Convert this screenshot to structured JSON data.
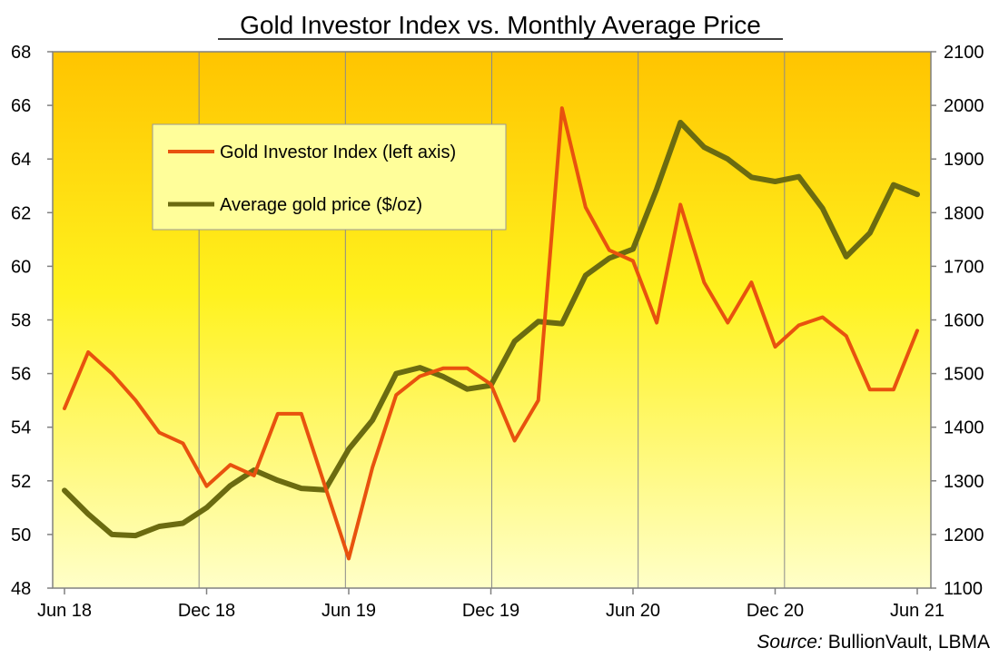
{
  "chart_data": {
    "type": "line",
    "title": "Gold Investor Index vs. Monthly  Average Price",
    "x_tick_labels": [
      "Jun 18",
      "Dec 18",
      "Jun 19",
      "Dec 19",
      "Jun 20",
      "Dec 20",
      "Jun 21"
    ],
    "x_range_months": [
      "2018-06",
      "2021-06"
    ],
    "left_axis": {
      "min": 48,
      "max": 68,
      "step": 2,
      "ticks": [
        "48",
        "50",
        "52",
        "54",
        "56",
        "58",
        "60",
        "62",
        "64",
        "66",
        "68"
      ]
    },
    "right_axis": {
      "min": 1100,
      "max": 2100,
      "step": 100,
      "ticks": [
        "1100",
        "1200",
        "1300",
        "1400",
        "1500",
        "1600",
        "1700",
        "1800",
        "1900",
        "2000",
        "2100"
      ]
    },
    "grid": "vertical",
    "legend_position": "top-left",
    "series": [
      {
        "name": "Gold Investor Index (left axis)",
        "axis": "left",
        "color": "#e8520e",
        "points": [
          [
            "2018-06",
            54.7
          ],
          [
            "2018-07",
            56.8
          ],
          [
            "2018-08",
            56.0
          ],
          [
            "2018-09",
            55.0
          ],
          [
            "2018-10",
            53.8
          ],
          [
            "2018-11",
            53.4
          ],
          [
            "2018-12",
            51.8
          ],
          [
            "2019-01",
            52.6
          ],
          [
            "2019-02",
            52.2
          ],
          [
            "2019-03",
            54.5
          ],
          [
            "2019-04",
            54.5
          ],
          [
            "2019-05",
            51.8
          ],
          [
            "2019-06",
            49.1
          ],
          [
            "2019-07",
            52.5
          ],
          [
            "2019-08",
            55.2
          ],
          [
            "2019-09",
            55.9
          ],
          [
            "2019-10",
            56.2
          ],
          [
            "2019-11",
            56.2
          ],
          [
            "2019-12",
            55.6
          ],
          [
            "2020-01",
            53.5
          ],
          [
            "2020-02",
            55.0
          ],
          [
            "2020-03",
            65.9
          ],
          [
            "2020-04",
            62.2
          ],
          [
            "2020-05",
            60.6
          ],
          [
            "2020-06",
            60.2
          ],
          [
            "2020-07",
            57.9
          ],
          [
            "2020-08",
            62.3
          ],
          [
            "2020-09",
            59.4
          ],
          [
            "2020-10",
            57.9
          ],
          [
            "2020-11",
            59.4
          ],
          [
            "2020-12",
            57.0
          ],
          [
            "2021-01",
            57.8
          ],
          [
            "2021-02",
            58.1
          ],
          [
            "2021-03",
            57.4
          ],
          [
            "2021-04",
            55.4
          ],
          [
            "2021-05",
            55.4
          ],
          [
            "2021-06",
            57.6
          ]
        ]
      },
      {
        "name": "Average gold price ($/oz)",
        "axis": "right",
        "color": "#6b6b10",
        "points": [
          [
            "2018-06",
            1282
          ],
          [
            "2018-07",
            1238
          ],
          [
            "2018-08",
            1200
          ],
          [
            "2018-09",
            1198
          ],
          [
            "2018-10",
            1215
          ],
          [
            "2018-11",
            1221
          ],
          [
            "2018-12",
            1250
          ],
          [
            "2019-01",
            1291
          ],
          [
            "2019-02",
            1320
          ],
          [
            "2019-03",
            1301
          ],
          [
            "2019-04",
            1286
          ],
          [
            "2019-05",
            1283
          ],
          [
            "2019-06",
            1359
          ],
          [
            "2019-07",
            1413
          ],
          [
            "2019-08",
            1500
          ],
          [
            "2019-09",
            1511
          ],
          [
            "2019-10",
            1494
          ],
          [
            "2019-11",
            1471
          ],
          [
            "2019-12",
            1478
          ],
          [
            "2020-01",
            1560
          ],
          [
            "2020-02",
            1597
          ],
          [
            "2020-03",
            1593
          ],
          [
            "2020-04",
            1683
          ],
          [
            "2020-05",
            1715
          ],
          [
            "2020-06",
            1732
          ],
          [
            "2020-07",
            1844
          ],
          [
            "2020-08",
            1968
          ],
          [
            "2020-09",
            1922
          ],
          [
            "2020-10",
            1900
          ],
          [
            "2020-11",
            1866
          ],
          [
            "2020-12",
            1858
          ],
          [
            "2021-01",
            1867
          ],
          [
            "2021-02",
            1808
          ],
          [
            "2021-03",
            1718
          ],
          [
            "2021-04",
            1762
          ],
          [
            "2021-05",
            1852
          ],
          [
            "2021-06",
            1834
          ]
        ]
      }
    ],
    "source_label": "Source:",
    "source_text": "BullionVault, LBMA"
  }
}
